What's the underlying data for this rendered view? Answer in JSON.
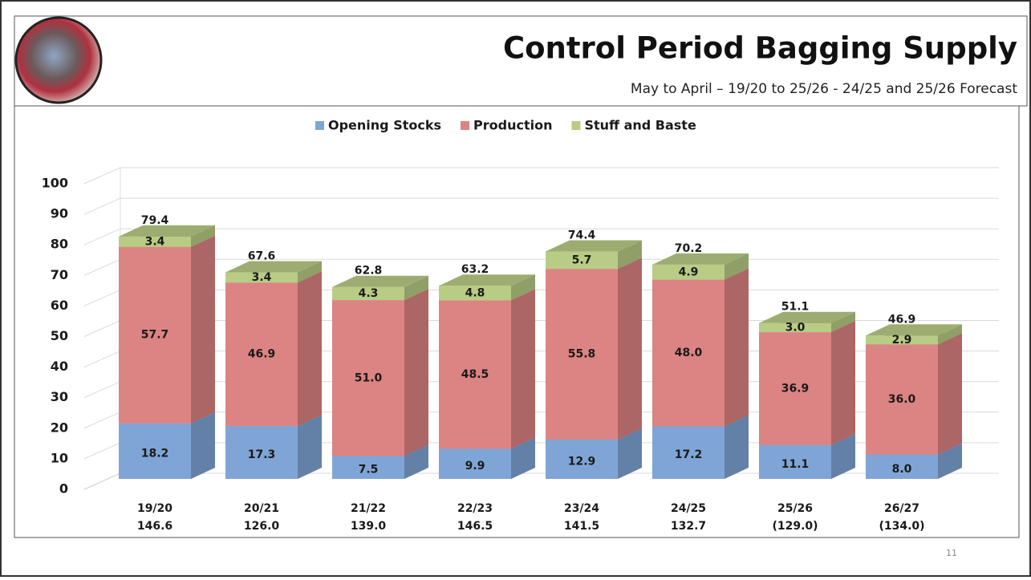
{
  "header": {
    "title": "Control Period Bagging Supply",
    "subtitle": "May to April –  19/20 to 25/26 - 24/25 and 25/26 Forecast"
  },
  "page_number": "11",
  "chart_data": {
    "type": "bar3d-stacked",
    "categories": [
      "19/20",
      "20/21",
      "21/22",
      "22/23",
      "23/24",
      "24/25",
      "25/26",
      "26/27"
    ],
    "category_totals": [
      "146.6",
      "126.0",
      "139.0",
      "146.5",
      "141.5",
      "132.7",
      "(129.0)",
      "(134.0)"
    ],
    "series": [
      {
        "name": "Opening Stocks",
        "color": "#7fa5d6",
        "values": [
          18.2,
          17.3,
          7.5,
          9.9,
          12.9,
          17.2,
          11.1,
          8.0
        ],
        "value_labels": [
          "18.2",
          "17.3",
          "7.5",
          "9.9",
          "12.9",
          "17.2",
          "11.1",
          "8.0"
        ]
      },
      {
        "name": "Production",
        "color": "#dc8383",
        "values": [
          57.7,
          46.9,
          51.0,
          48.5,
          55.8,
          48.0,
          36.9,
          36.0
        ],
        "value_labels": [
          "57.7",
          "46.9",
          "51.0",
          "48.5",
          "55.8",
          "48.0",
          "36.9",
          "36.0"
        ]
      },
      {
        "name": "Stuff and Baste",
        "color": "#b9cc85",
        "values": [
          3.4,
          3.4,
          4.3,
          4.8,
          5.7,
          4.9,
          3.0,
          2.9
        ],
        "value_labels": [
          "3.4",
          "3.4",
          "4.3",
          "4.8",
          "5.7",
          "4.9",
          "3.0",
          "2.9"
        ]
      }
    ],
    "totals": [
      79.4,
      67.6,
      62.8,
      63.2,
      74.4,
      70.2,
      51.1,
      46.9
    ],
    "ylim": [
      0,
      100
    ],
    "yticks": [
      0,
      10,
      20,
      30,
      40,
      50,
      60,
      70,
      80,
      90,
      100
    ],
    "grid": true
  }
}
